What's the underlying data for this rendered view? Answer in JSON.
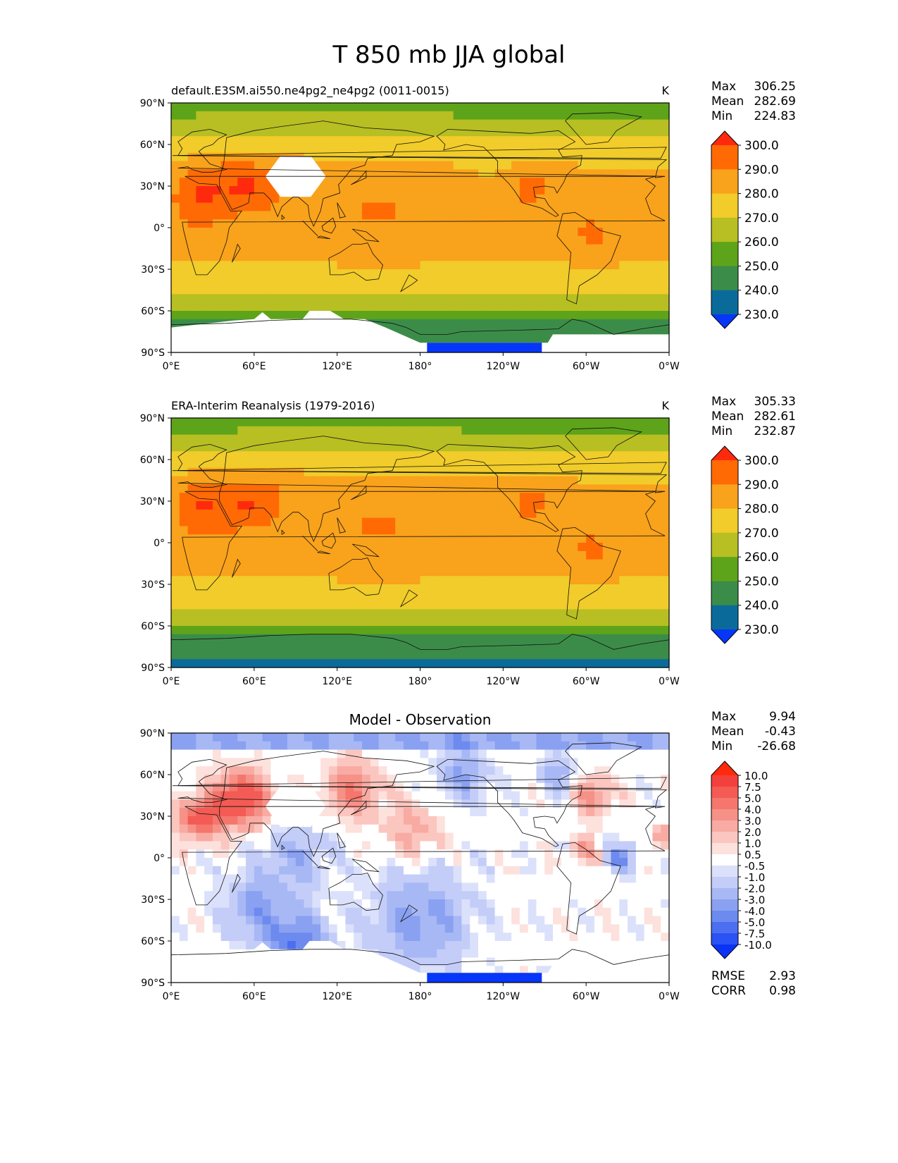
{
  "figure": {
    "title": "T 850 mb JJA global"
  },
  "axes": {
    "lat_ticks": [
      "90°N",
      "60°N",
      "30°N",
      "0°",
      "30°S",
      "60°S",
      "90°S"
    ],
    "lon_ticks": [
      "0°E",
      "60°E",
      "120°E",
      "180°",
      "120°W",
      "60°W",
      "0°W"
    ]
  },
  "panels": [
    {
      "title": "default.E3SM.ai550.ne4pg2_ne4pg2 (0011-0015)",
      "units": "K",
      "stats": [
        {
          "label": "Max",
          "value": "306.25"
        },
        {
          "label": "Mean",
          "value": "282.69"
        },
        {
          "label": "Min",
          "value": "224.83"
        }
      ],
      "colorbar": {
        "labels": [
          "300.0",
          "290.0",
          "280.0",
          "270.0",
          "260.0",
          "250.0",
          "240.0",
          "230.0"
        ],
        "colors": [
          "#ff2a0e",
          "#ff6a05",
          "#f9a21b",
          "#f1cc2a",
          "#b7bf22",
          "#5ea41a",
          "#3c8c49",
          "#0a6b9b",
          "#0636f8"
        ]
      }
    },
    {
      "title": "ERA-Interim Reanalysis (1979-2016)",
      "units": "K",
      "stats": [
        {
          "label": "Max",
          "value": "305.33"
        },
        {
          "label": "Mean",
          "value": "282.61"
        },
        {
          "label": "Min",
          "value": "232.87"
        }
      ],
      "colorbar": {
        "labels": [
          "300.0",
          "290.0",
          "280.0",
          "270.0",
          "260.0",
          "250.0",
          "240.0",
          "230.0"
        ],
        "colors": [
          "#ff2a0e",
          "#ff6a05",
          "#f9a21b",
          "#f1cc2a",
          "#b7bf22",
          "#5ea41a",
          "#3c8c49",
          "#0a6b9b",
          "#0636f8"
        ]
      }
    },
    {
      "title": "Model - Observation",
      "units": "",
      "stats": [
        {
          "label": "Max",
          "value": "9.94"
        },
        {
          "label": "Mean",
          "value": "-0.43"
        },
        {
          "label": "Min",
          "value": "-26.68"
        }
      ],
      "colorbar": {
        "labels": [
          "10.0",
          "7.5",
          "5.0",
          "4.0",
          "3.0",
          "2.0",
          "1.0",
          "0.5",
          "-0.5",
          "-1.0",
          "-2.0",
          "-3.0",
          "-4.0",
          "-5.0",
          "-7.5",
          "-10.0"
        ],
        "colors": [
          "#ff2a0e",
          "#f4403c",
          "#f35b54",
          "#f4766c",
          "#f69187",
          "#f8aba2",
          "#fbc6bf",
          "#fde1dd",
          "#ffffff",
          "#dbe1fb",
          "#c3cdf8",
          "#a7b8f5",
          "#8aa1f1",
          "#6d8aee",
          "#4c6ef0",
          "#2a52f4",
          "#0a33f6"
        ]
      },
      "metrics": [
        {
          "label": "RMSE",
          "value": "2.93"
        },
        {
          "label": "CORR",
          "value": "0.98"
        }
      ]
    }
  ]
}
